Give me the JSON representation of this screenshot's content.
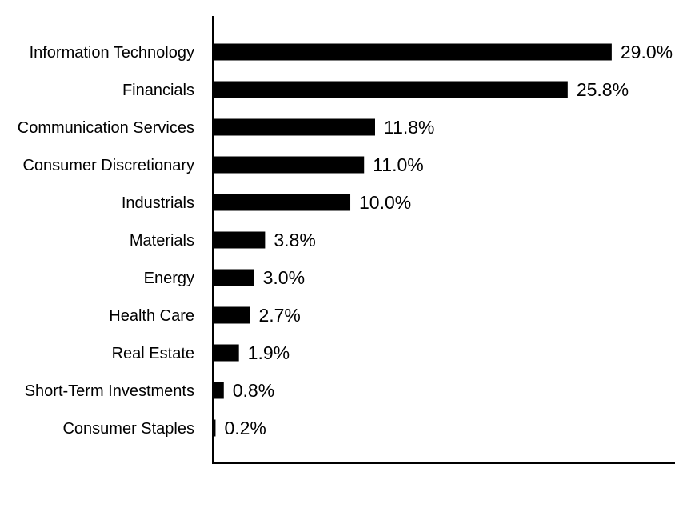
{
  "chart_data": {
    "type": "bar",
    "orientation": "horizontal",
    "categories": [
      "Information Technology",
      "Financials",
      "Communication Services",
      "Consumer Discretionary",
      "Industrials",
      "Materials",
      "Energy",
      "Health Care",
      "Real Estate",
      "Short-Term Investments",
      "Consumer Staples"
    ],
    "values": [
      29.0,
      25.8,
      11.8,
      11.0,
      10.0,
      3.8,
      3.0,
      2.7,
      1.9,
      0.8,
      0.2
    ],
    "value_labels": [
      "29.0%",
      "25.8%",
      "11.8%",
      "11.0%",
      "10.0%",
      "3.8%",
      "3.0%",
      "2.7%",
      "1.9%",
      "0.8%",
      "0.2%"
    ],
    "xlim": [
      0,
      33.6
    ],
    "bar_color": "#000000",
    "grid": false,
    "legend": "none"
  }
}
